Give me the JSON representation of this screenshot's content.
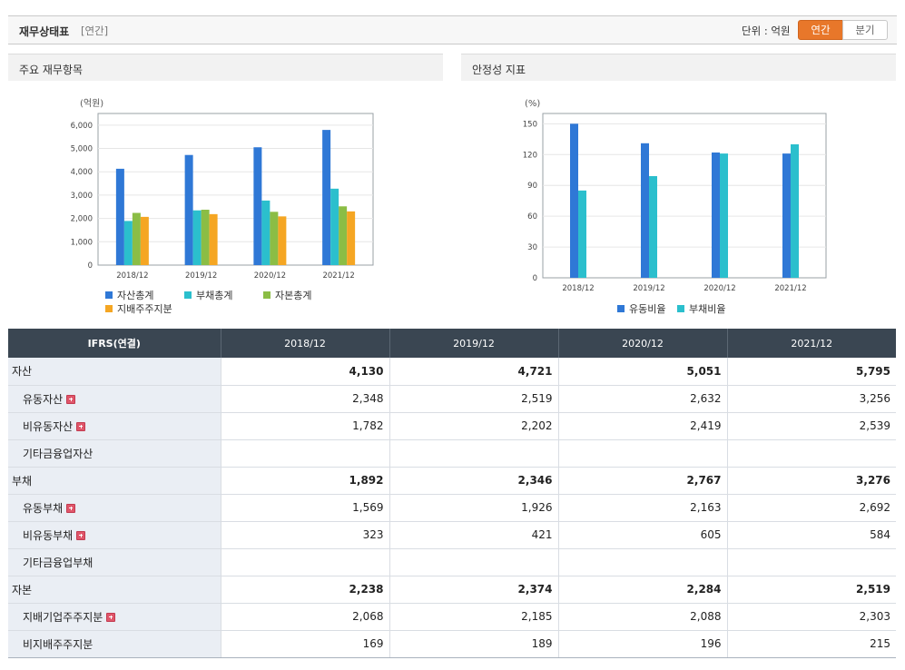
{
  "header": {
    "title": "재무상태표",
    "sub": "[연간]",
    "unit": "단위 : 억원",
    "btn_annual": "연간",
    "btn_quarter": "분기"
  },
  "left_panel": {
    "title": "주요 재무항목"
  },
  "right_panel": {
    "title": "안정성 지표"
  },
  "chart_data": [
    {
      "type": "bar",
      "title": "주요 재무항목",
      "ylabel": "(억원)",
      "ylim": [
        0,
        6500
      ],
      "yticks": [
        "0",
        "1,000",
        "2,000",
        "3,000",
        "4,000",
        "5,000",
        "6,000"
      ],
      "ytick_values": [
        0,
        1000,
        2000,
        3000,
        4000,
        5000,
        6000
      ],
      "categories": [
        "2018/12",
        "2019/12",
        "2020/12",
        "2021/12"
      ],
      "series": [
        {
          "name": "자산총계",
          "color": "#2f78d6",
          "values": [
            4130,
            4721,
            5051,
            5795
          ]
        },
        {
          "name": "부채총계",
          "color": "#2bbfcd",
          "values": [
            1892,
            2346,
            2767,
            3276
          ]
        },
        {
          "name": "자본총계",
          "color": "#8bbd45",
          "values": [
            2238,
            2374,
            2284,
            2519
          ]
        },
        {
          "name": "지배주주지분",
          "color": "#f5a623",
          "values": [
            2068,
            2185,
            2088,
            2303
          ]
        }
      ],
      "grid": true
    },
    {
      "type": "bar",
      "title": "안정성 지표",
      "ylabel": "(%)",
      "ylim": [
        0,
        160
      ],
      "yticks": [
        "0",
        "30",
        "60",
        "90",
        "120",
        "150"
      ],
      "ytick_values": [
        0,
        30,
        60,
        90,
        120,
        150
      ],
      "categories": [
        "2018/12",
        "2019/12",
        "2020/12",
        "2021/12"
      ],
      "series": [
        {
          "name": "유동비율",
          "color": "#2f78d6",
          "values": [
            150,
            131,
            122,
            121
          ]
        },
        {
          "name": "부채비율",
          "color": "#2bbfcd",
          "values": [
            85,
            99,
            121,
            130
          ]
        }
      ],
      "grid": true
    }
  ],
  "table": {
    "headers": [
      "IFRS(연결)",
      "2018/12",
      "2019/12",
      "2020/12",
      "2021/12"
    ],
    "rows": [
      {
        "label": "자산",
        "values": [
          "4,130",
          "4,721",
          "5,051",
          "5,795"
        ]
      },
      {
        "label": "유동자산",
        "values": [
          "2,348",
          "2,519",
          "2,632",
          "3,256"
        ]
      },
      {
        "label": "비유동자산",
        "values": [
          "1,782",
          "2,202",
          "2,419",
          "2,539"
        ]
      },
      {
        "label": "기타금융업자산",
        "values": [
          "",
          "",
          "",
          ""
        ]
      },
      {
        "label": "부채",
        "values": [
          "1,892",
          "2,346",
          "2,767",
          "3,276"
        ]
      },
      {
        "label": "유동부채",
        "values": [
          "1,569",
          "1,926",
          "2,163",
          "2,692"
        ]
      },
      {
        "label": "비유동부채",
        "values": [
          "323",
          "421",
          "605",
          "584"
        ]
      },
      {
        "label": "기타금융업부채",
        "values": [
          "",
          "",
          "",
          ""
        ]
      },
      {
        "label": "자본",
        "values": [
          "2,238",
          "2,374",
          "2,284",
          "2,519"
        ]
      },
      {
        "label": "지배기업주주지분",
        "values": [
          "2,068",
          "2,185",
          "2,088",
          "2,303"
        ]
      },
      {
        "label": "비지배주주지분",
        "values": [
          "169",
          "189",
          "196",
          "215"
        ]
      }
    ]
  }
}
